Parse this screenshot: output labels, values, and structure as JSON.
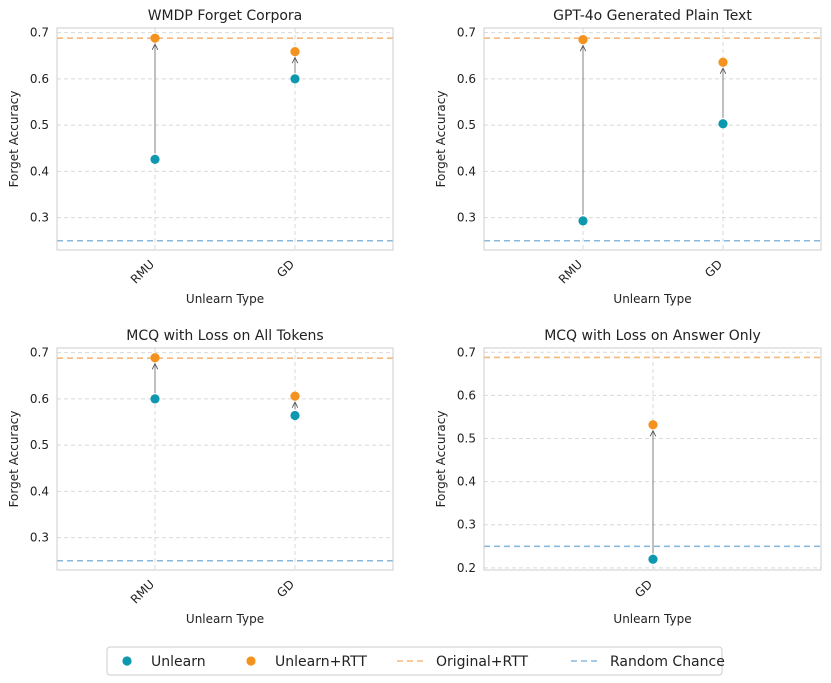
{
  "colors": {
    "unlearn": "#0e98b0",
    "unlearn_rtt": "#f5921e",
    "original_rtt": "#f8b87a",
    "random_chance": "#8ab9de",
    "grid": "#d9d9d9",
    "frame": "#cccccc",
    "arrow": "#808080"
  },
  "legend": {
    "items": [
      {
        "label": "Unlearn",
        "kind": "marker",
        "color_key": "unlearn"
      },
      {
        "label": "Unlearn+RTT",
        "kind": "marker",
        "color_key": "unlearn_rtt"
      },
      {
        "label": "Original+RTT",
        "kind": "dash",
        "color_key": "original_rtt"
      },
      {
        "label": "Random Chance",
        "kind": "dash",
        "color_key": "random_chance"
      }
    ]
  },
  "chart_data": [
    {
      "type": "scatter",
      "title": "WMDP Forget Corpora",
      "xlabel": "Unlearn Type",
      "ylabel": "Forget Accuracy",
      "categories": [
        "RMU",
        "GD"
      ],
      "ylim": [
        0.23,
        0.71
      ],
      "yticks": [
        0.3,
        0.4,
        0.5,
        0.6,
        0.7
      ],
      "original_rtt": 0.688,
      "random_chance": 0.25,
      "series": [
        {
          "name": "Unlearn",
          "values": [
            0.426,
            0.6
          ]
        },
        {
          "name": "Unlearn+RTT",
          "values": [
            0.688,
            0.659
          ]
        }
      ]
    },
    {
      "type": "scatter",
      "title": "GPT-4o Generated Plain Text",
      "xlabel": "Unlearn Type",
      "ylabel": "Forget Accuracy",
      "categories": [
        "RMU",
        "GD"
      ],
      "ylim": [
        0.23,
        0.71
      ],
      "yticks": [
        0.3,
        0.4,
        0.5,
        0.6,
        0.7
      ],
      "original_rtt": 0.688,
      "random_chance": 0.25,
      "series": [
        {
          "name": "Unlearn",
          "values": [
            0.293,
            0.503
          ]
        },
        {
          "name": "Unlearn+RTT",
          "values": [
            0.685,
            0.636
          ]
        }
      ]
    },
    {
      "type": "scatter",
      "title": "MCQ with Loss on All Tokens",
      "xlabel": "Unlearn Type",
      "ylabel": "Forget Accuracy",
      "categories": [
        "RMU",
        "GD"
      ],
      "ylim": [
        0.23,
        0.71
      ],
      "yticks": [
        0.3,
        0.4,
        0.5,
        0.6,
        0.7
      ],
      "original_rtt": 0.688,
      "random_chance": 0.25,
      "series": [
        {
          "name": "Unlearn",
          "values": [
            0.6,
            0.564
          ]
        },
        {
          "name": "Unlearn+RTT",
          "values": [
            0.689,
            0.606
          ]
        }
      ]
    },
    {
      "type": "scatter",
      "title": "MCQ with Loss on Answer Only",
      "xlabel": "Unlearn Type",
      "ylabel": "Forget Accuracy",
      "categories": [
        "GD"
      ],
      "ylim": [
        0.195,
        0.71
      ],
      "yticks": [
        0.2,
        0.3,
        0.4,
        0.5,
        0.6,
        0.7
      ],
      "original_rtt": 0.688,
      "random_chance": 0.25,
      "series": [
        {
          "name": "Unlearn",
          "values": [
            0.22
          ]
        },
        {
          "name": "Unlearn+RTT",
          "values": [
            0.532
          ]
        }
      ]
    }
  ]
}
